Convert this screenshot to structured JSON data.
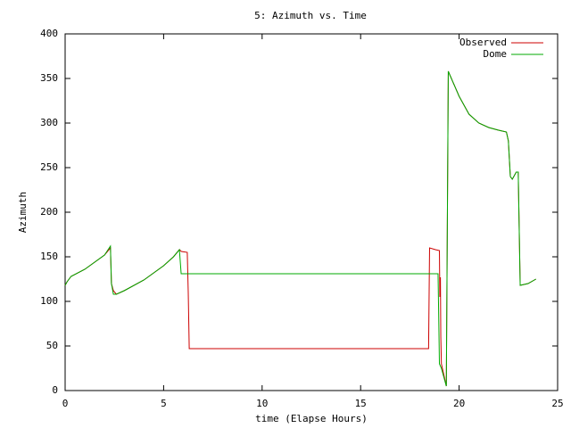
{
  "chart_data": {
    "type": "line",
    "title": "5: Azimuth vs. Time",
    "x_label": "time (Elapse Hours)",
    "y_label": "Azimuth",
    "xlim": [
      0,
      25
    ],
    "xticks": [
      0,
      5,
      10,
      15,
      20,
      25
    ],
    "ylim": [
      0,
      400
    ],
    "yticks": [
      0,
      50,
      100,
      150,
      200,
      250,
      300,
      350,
      400
    ],
    "legend": "top-right",
    "series": [
      {
        "name": "Observed",
        "color": "#cc0000",
        "x": [
          0,
          0.1,
          0.3,
          1,
          2,
          2.3,
          2.35,
          2.45,
          2.6,
          3,
          4,
          5,
          5.5,
          5.8,
          5.9,
          6.2,
          6.25,
          6.3,
          18.45,
          18.5,
          18.8,
          19.0,
          19.02,
          19.05,
          19.07,
          19.1,
          19.35,
          19.45,
          20,
          20.5,
          21,
          21.5,
          22,
          22.4,
          22.5,
          22.6,
          22.7,
          22.9,
          23,
          23.1,
          23.5,
          23.9
        ],
        "values": [
          118,
          122,
          128,
          136,
          152,
          160,
          120,
          112,
          108,
          112,
          124,
          140,
          150,
          158,
          156,
          155,
          110,
          47,
          47,
          160,
          158,
          157,
          105,
          127,
          60,
          30,
          5,
          358,
          330,
          310,
          300,
          295,
          292,
          290,
          280,
          240,
          237,
          245,
          245,
          118,
          120,
          125
        ]
      },
      {
        "name": "Dome",
        "color": "#00aa00",
        "x": [
          0,
          0.1,
          0.3,
          1,
          2,
          2.3,
          2.35,
          2.45,
          2.6,
          3,
          4,
          5,
          5.5,
          5.8,
          5.89,
          18.93,
          19.0,
          19.1,
          19.35,
          19.45,
          20,
          20.5,
          21,
          21.5,
          22,
          22.4,
          22.5,
          22.6,
          22.7,
          22.9,
          23,
          23.1,
          23.5,
          23.9
        ],
        "values": [
          118,
          122,
          128,
          136,
          152,
          162,
          120,
          108,
          108,
          112,
          124,
          140,
          150,
          158,
          131,
          131,
          30,
          25,
          5,
          358,
          330,
          310,
          300,
          295,
          292,
          290,
          280,
          240,
          237,
          245,
          245,
          118,
          120,
          125
        ]
      }
    ]
  }
}
